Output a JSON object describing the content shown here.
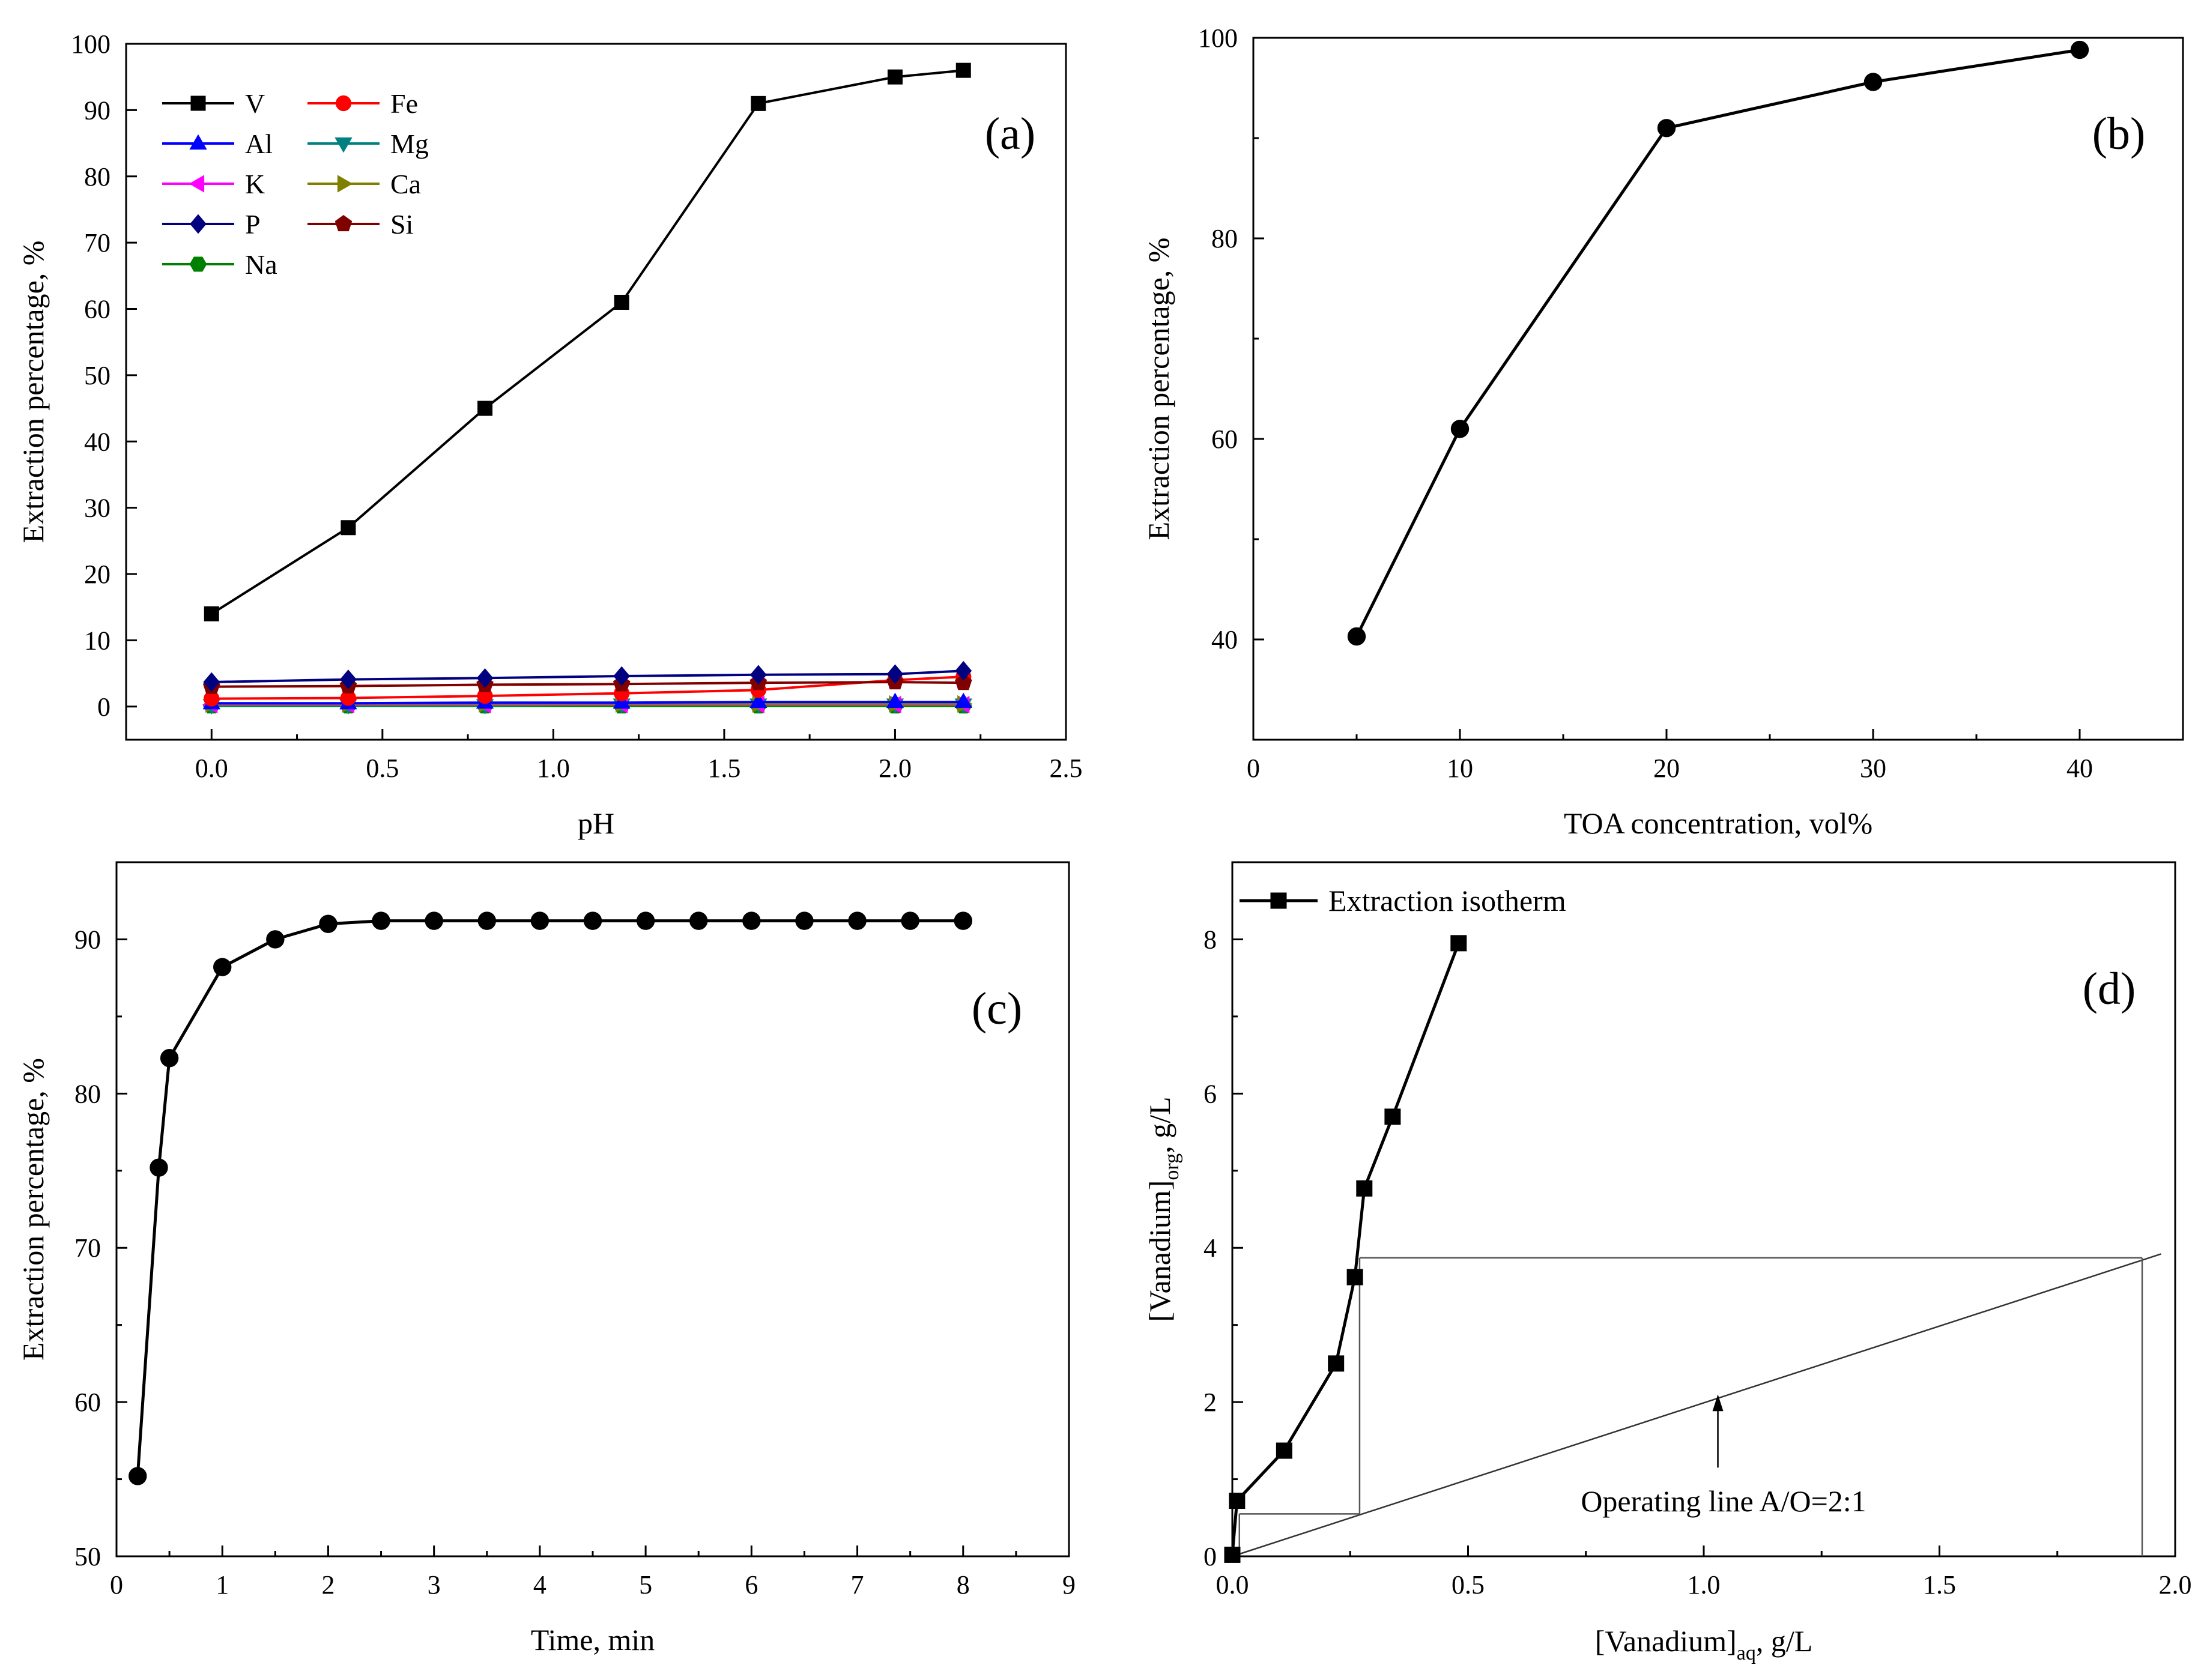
{
  "colors": {
    "V": "#000000",
    "Fe": "#ff0000",
    "Al": "#0000ff",
    "Mg": "#008080",
    "K": "#ff00ff",
    "Ca": "#808000",
    "P": "#000080",
    "Si": "#800000",
    "Na": "#008000"
  },
  "chart_data": [
    {
      "id": "a",
      "type": "line",
      "panel_label": "(a)",
      "xlabel": "pH",
      "ylabel": "Extraction percentage, %",
      "xlim": [
        -0.25,
        2.5
      ],
      "ylim": [
        -5,
        100
      ],
      "xticks": [
        0.0,
        0.5,
        1.0,
        1.5,
        2.0,
        2.5
      ],
      "xtick_labels": [
        "0.0",
        "0.5",
        "1.0",
        "1.5",
        "2.0",
        "2.5"
      ],
      "yticks": [
        0,
        10,
        20,
        30,
        40,
        50,
        60,
        70,
        80,
        90,
        100
      ],
      "ytick_labels": [
        "0",
        "10",
        "20",
        "30",
        "40",
        "50",
        "60",
        "70",
        "80",
        "90",
        "100"
      ],
      "legend_position": "top-left",
      "x": [
        0.0,
        0.4,
        0.8,
        1.2,
        1.6,
        2.0,
        2.2
      ],
      "series": [
        {
          "name": "V",
          "marker": "square",
          "values": [
            14,
            27,
            45,
            61,
            91,
            95,
            96
          ]
        },
        {
          "name": "Fe",
          "marker": "circle",
          "values": [
            1.2,
            1.3,
            1.6,
            2.0,
            2.5,
            4.0,
            4.5
          ]
        },
        {
          "name": "Al",
          "marker": "triangle-up",
          "values": [
            0.5,
            0.5,
            0.6,
            0.6,
            0.7,
            0.7,
            0.7
          ]
        },
        {
          "name": "Mg",
          "marker": "triangle-down",
          "values": [
            0.2,
            0.2,
            0.2,
            0.3,
            0.3,
            0.3,
            0.3
          ]
        },
        {
          "name": "K",
          "marker": "triangle-left",
          "values": [
            0.3,
            0.3,
            0.3,
            0.3,
            0.3,
            0.3,
            0.3
          ]
        },
        {
          "name": "Ca",
          "marker": "triangle-right",
          "values": [
            0.4,
            0.4,
            0.4,
            0.4,
            0.4,
            0.4,
            0.4
          ]
        },
        {
          "name": "P",
          "marker": "diamond",
          "values": [
            3.7,
            4.1,
            4.3,
            4.6,
            4.8,
            4.9,
            5.4
          ]
        },
        {
          "name": "Si",
          "marker": "pentagon",
          "values": [
            3.0,
            3.1,
            3.3,
            3.4,
            3.6,
            3.7,
            3.6
          ]
        },
        {
          "name": "Na",
          "marker": "hexagon",
          "values": [
            0.1,
            0.1,
            0.1,
            0.1,
            0.1,
            0.1,
            0.1
          ]
        }
      ]
    },
    {
      "id": "b",
      "type": "line",
      "panel_label": "(b)",
      "xlabel": "TOA concentration, vol%",
      "ylabel": "Extraction percentage, %",
      "xlim": [
        0,
        45
      ],
      "ylim": [
        30,
        100
      ],
      "xticks": [
        0,
        10,
        20,
        30,
        40
      ],
      "xtick_labels": [
        "0",
        "10",
        "20",
        "30",
        "40"
      ],
      "yticks": [
        40,
        60,
        80,
        100
      ],
      "ytick_labels": [
        "40",
        "60",
        "80",
        "100"
      ],
      "series": [
        {
          "name": "TOA",
          "marker": "circle",
          "x": [
            5,
            10,
            20,
            30,
            40
          ],
          "values": [
            40.3,
            61,
            91,
            95.6,
            98.8
          ]
        }
      ]
    },
    {
      "id": "c",
      "type": "line",
      "panel_label": "(c)",
      "xlabel": "Time, min",
      "ylabel": "Extraction percentage, %",
      "xlim": [
        0,
        9
      ],
      "ylim": [
        50,
        95
      ],
      "xticks": [
        0,
        1,
        2,
        3,
        4,
        5,
        6,
        7,
        8,
        9
      ],
      "xtick_labels": [
        "0",
        "1",
        "2",
        "3",
        "4",
        "5",
        "6",
        "7",
        "8",
        "9"
      ],
      "yticks": [
        50,
        60,
        70,
        80,
        90
      ],
      "ytick_labels": [
        "50",
        "60",
        "70",
        "80",
        "90"
      ],
      "series": [
        {
          "name": "Time",
          "marker": "circle",
          "x": [
            0.2,
            0.4,
            0.5,
            1.0,
            1.5,
            2.0,
            2.5,
            3.0,
            3.5,
            4.0,
            4.5,
            5.0,
            5.5,
            6.0,
            6.5,
            7.0,
            7.5,
            8.0
          ],
          "values": [
            55.2,
            75.2,
            82.3,
            88.2,
            90.0,
            91.0,
            91.2,
            91.2,
            91.2,
            91.2,
            91.2,
            91.2,
            91.2,
            91.2,
            91.2,
            91.2,
            91.2,
            91.2
          ]
        }
      ]
    },
    {
      "id": "d",
      "type": "line",
      "panel_label": "(d)",
      "xlabel_main": "[Vanadium]",
      "xlabel_sub": "aq",
      "xlabel_tail": ", g/L",
      "ylabel_main": "[Vanadium]",
      "ylabel_sub": "org",
      "ylabel_tail": ", g/L",
      "xlim": [
        0,
        2.0
      ],
      "ylim": [
        0,
        9
      ],
      "xticks": [
        0.0,
        0.5,
        1.0,
        1.5,
        2.0
      ],
      "xtick_labels": [
        "0.0",
        "0.5",
        "1.0",
        "1.5",
        "2.0"
      ],
      "yticks": [
        0,
        2,
        4,
        6,
        8
      ],
      "ytick_labels": [
        "0",
        "2",
        "4",
        "6",
        "8"
      ],
      "legend": "Extraction isotherm",
      "annotation": "Operating line A/O=2:1",
      "series": [
        {
          "name": "Extraction isotherm",
          "marker": "square",
          "x": [
            0.0,
            0.01,
            0.11,
            0.22,
            0.26,
            0.28,
            0.34,
            0.48
          ],
          "values": [
            0.02,
            0.72,
            1.37,
            2.5,
            3.62,
            4.77,
            5.7,
            7.95
          ]
        }
      ],
      "operating_line": {
        "x": [
          0.0,
          1.97
        ],
        "values": [
          0.0,
          3.92
        ]
      },
      "mccabe_thiele_steps": [
        {
          "x": [
            1.93,
            1.93
          ],
          "values": [
            0.0,
            3.87
          ]
        },
        {
          "x": [
            1.93,
            0.27
          ],
          "values": [
            3.87,
            3.87
          ]
        },
        {
          "x": [
            0.27,
            0.27
          ],
          "values": [
            3.87,
            0.55
          ]
        },
        {
          "x": [
            0.27,
            0.015
          ],
          "values": [
            0.55,
            0.55
          ]
        },
        {
          "x": [
            0.015,
            0.015
          ],
          "values": [
            0.55,
            0.0
          ]
        }
      ],
      "annotation_arrow": {
        "x": 1.03,
        "from": 1.15,
        "to": 2.1
      }
    }
  ]
}
